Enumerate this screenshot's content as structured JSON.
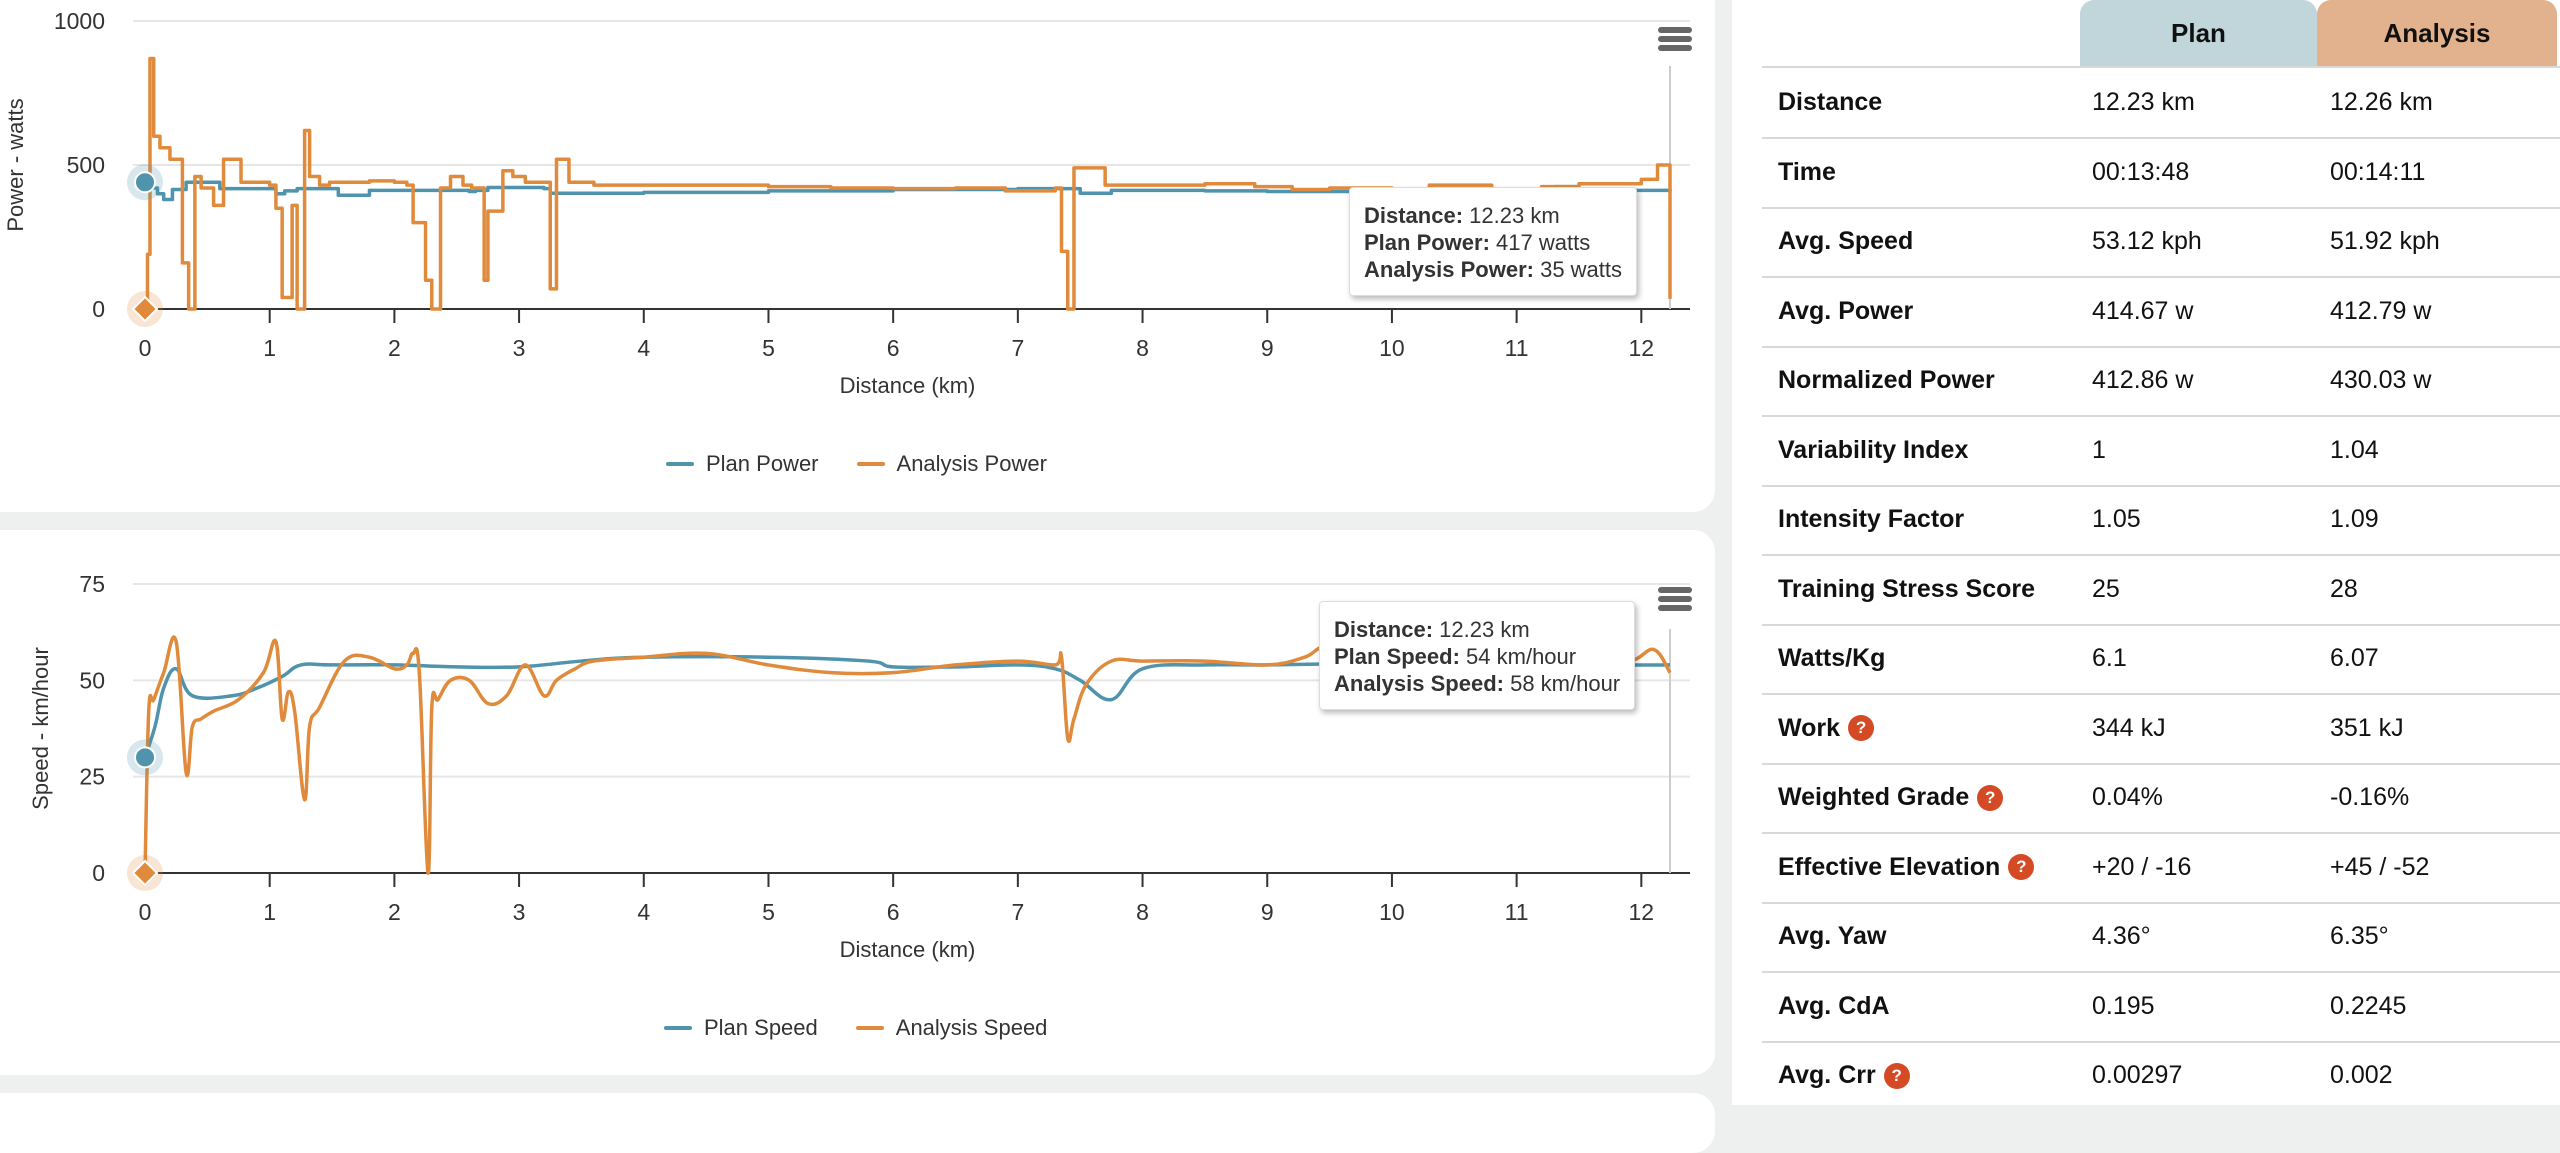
{
  "colors": {
    "plan": "#4f93ad",
    "analysis": "#e08a3c",
    "plan_header_bg": "#c1d6da",
    "analysis_header_bg": "#e2b18d",
    "help_icon": "#d34a25"
  },
  "chart_data": [
    {
      "id": "power",
      "type": "line",
      "step": true,
      "title": "",
      "xlabel": "Distance (km)",
      "ylabel": "Power - watts",
      "xlim": [
        0,
        12.23
      ],
      "ylim": [
        0,
        1000
      ],
      "x_ticks": [
        "0",
        "1",
        "2",
        "3",
        "4",
        "5",
        "6",
        "7",
        "8",
        "9",
        "10",
        "11",
        "12"
      ],
      "y_ticks": [
        "0",
        "500",
        "1000"
      ],
      "grid": true,
      "legend_position": "bottom-center",
      "series": [
        {
          "name": "Plan Power",
          "x": [
            0,
            0.05,
            0.1,
            0.15,
            0.22,
            0.33,
            0.6,
            1.05,
            1.12,
            1.22,
            1.55,
            1.8,
            2.3,
            2.6,
            2.65,
            2.75,
            3.2,
            3.25,
            4.0,
            5.0,
            6.0,
            7.0,
            7.5,
            7.75,
            8.5,
            9.0,
            9.5,
            10.0,
            10.5,
            11.0,
            11.3,
            11.5,
            12.23
          ],
          "values": [
            440,
            420,
            400,
            380,
            415,
            440,
            418,
            400,
            410,
            418,
            395,
            412,
            412,
            408,
            412,
            422,
            418,
            402,
            405,
            410,
            415,
            418,
            402,
            412,
            410,
            408,
            408,
            410,
            412,
            415,
            425,
            412,
            417
          ]
        },
        {
          "name": "Analysis Power",
          "x": [
            0,
            0.02,
            0.04,
            0.07,
            0.12,
            0.2,
            0.3,
            0.35,
            0.4,
            0.45,
            0.55,
            0.63,
            0.77,
            1.0,
            1.05,
            1.1,
            1.18,
            1.22,
            1.28,
            1.32,
            1.4,
            1.48,
            1.6,
            1.8,
            2.0,
            2.1,
            2.15,
            2.25,
            2.3,
            2.37,
            2.45,
            2.55,
            2.62,
            2.72,
            2.75,
            2.87,
            2.95,
            3.05,
            3.25,
            3.3,
            3.4,
            3.6,
            4.5,
            5.0,
            5.5,
            6.0,
            6.5,
            6.9,
            7.3,
            7.35,
            7.4,
            7.45,
            7.7,
            8.0,
            8.5,
            8.9,
            9.2,
            9.5,
            10.0,
            10.3,
            10.8,
            11.2,
            11.5,
            12.0,
            12.13,
            12.23
          ],
          "values": [
            0,
            190,
            870,
            600,
            560,
            520,
            160,
            0,
            460,
            420,
            360,
            520,
            440,
            430,
            350,
            40,
            360,
            0,
            620,
            460,
            430,
            440,
            440,
            445,
            440,
            430,
            300,
            100,
            0,
            420,
            460,
            430,
            420,
            100,
            340,
            480,
            460,
            440,
            70,
            520,
            440,
            430,
            430,
            425,
            420,
            418,
            420,
            410,
            420,
            200,
            0,
            490,
            430,
            430,
            435,
            425,
            415,
            420,
            410,
            430,
            415,
            425,
            435,
            450,
            500,
            35
          ],
          "markers": [
            {
              "x": 0,
              "value": 0
            }
          ]
        }
      ],
      "tooltip": {
        "distance_label": "Distance:",
        "distance_value": "12.23 km",
        "plan_label": "Plan Power:",
        "plan_value": "417 watts",
        "analysis_label": "Analysis Power:",
        "analysis_value": "35 watts"
      }
    },
    {
      "id": "speed",
      "type": "line",
      "step": false,
      "title": "",
      "xlabel": "Distance (km)",
      "ylabel": "Speed - km/hour",
      "xlim": [
        0,
        12.23
      ],
      "ylim": [
        0,
        75
      ],
      "x_ticks": [
        "0",
        "1",
        "2",
        "3",
        "4",
        "5",
        "6",
        "7",
        "8",
        "9",
        "10",
        "11",
        "12"
      ],
      "y_ticks": [
        "0",
        "25",
        "50",
        "75"
      ],
      "grid": true,
      "legend_position": "bottom-center",
      "series": [
        {
          "name": "Plan Speed",
          "x": [
            0,
            0.08,
            0.15,
            0.25,
            0.38,
            0.7,
            0.9,
            1.1,
            1.25,
            1.5,
            2.0,
            2.5,
            3.0,
            3.5,
            4.0,
            5.0,
            5.8,
            6.0,
            6.5,
            7.0,
            7.3,
            7.5,
            7.75,
            8.0,
            8.5,
            9.0,
            10.0,
            11.0,
            11.8,
            12.23
          ],
          "values": [
            30,
            38,
            48,
            53,
            46,
            46,
            48,
            51,
            54,
            54,
            54,
            53.5,
            53.5,
            55,
            56,
            56,
            55,
            53.5,
            53.5,
            54,
            53,
            50,
            45,
            53,
            54,
            54,
            54.5,
            54.5,
            54,
            54
          ]
        },
        {
          "name": "Analysis Speed",
          "x": [
            0,
            0.03,
            0.07,
            0.15,
            0.25,
            0.33,
            0.38,
            0.45,
            0.55,
            0.75,
            0.95,
            1.05,
            1.1,
            1.15,
            1.2,
            1.28,
            1.32,
            1.4,
            1.6,
            1.8,
            2.0,
            2.1,
            2.15,
            2.2,
            2.27,
            2.3,
            2.35,
            2.45,
            2.6,
            2.75,
            2.9,
            3.05,
            3.2,
            3.3,
            3.45,
            3.6,
            4.0,
            4.5,
            5.0,
            5.5,
            6.0,
            6.5,
            7.0,
            7.3,
            7.35,
            7.4,
            7.45,
            7.55,
            7.75,
            8.0,
            8.5,
            9.0,
            9.3,
            9.5,
            10.0,
            11.0,
            11.5,
            11.9,
            12.1,
            12.23
          ],
          "values": [
            0,
            42,
            45,
            52,
            60,
            26,
            38,
            40,
            42,
            45,
            52,
            60,
            40,
            47,
            42,
            19,
            38,
            43,
            55,
            56,
            53,
            54,
            57,
            52,
            0,
            43,
            45,
            50,
            50,
            44,
            46,
            54,
            46,
            50,
            53,
            55,
            56,
            57,
            54,
            52,
            52,
            54,
            55,
            54,
            56,
            35,
            40,
            49,
            55,
            55,
            55,
            54,
            56,
            59,
            58,
            57,
            56,
            55,
            58,
            52
          ]
        }
      ],
      "tooltip": {
        "distance_label": "Distance:",
        "distance_value": "12.23 km",
        "plan_label": "Plan Speed:",
        "plan_value": "54 km/hour",
        "analysis_label": "Analysis Speed:",
        "analysis_value": "58 km/hour"
      }
    }
  ],
  "stats": {
    "headers": {
      "plan": "Plan",
      "analysis": "Analysis"
    },
    "rows": [
      {
        "label": "Distance",
        "help": false,
        "plan": "12.23 km",
        "analysis": "12.26 km"
      },
      {
        "label": "Time",
        "help": false,
        "plan": "00:13:48",
        "analysis": "00:14:11"
      },
      {
        "label": "Avg. Speed",
        "help": false,
        "plan": "53.12 kph",
        "analysis": "51.92 kph"
      },
      {
        "label": "Avg. Power",
        "help": false,
        "plan": "414.67 w",
        "analysis": "412.79 w"
      },
      {
        "label": "Normalized Power",
        "help": false,
        "plan": "412.86 w",
        "analysis": "430.03 w"
      },
      {
        "label": "Variability Index",
        "help": false,
        "plan": "1",
        "analysis": "1.04"
      },
      {
        "label": "Intensity Factor",
        "help": false,
        "plan": "1.05",
        "analysis": "1.09"
      },
      {
        "label": "Training Stress Score",
        "help": false,
        "plan": "25",
        "analysis": "28"
      },
      {
        "label": "Watts/Kg",
        "help": false,
        "plan": "6.1",
        "analysis": "6.07"
      },
      {
        "label": "Work",
        "help": true,
        "plan": "344 kJ",
        "analysis": "351 kJ"
      },
      {
        "label": "Weighted Grade",
        "help": true,
        "plan": "0.04%",
        "analysis": "-0.16%"
      },
      {
        "label": "Effective Elevation",
        "help": true,
        "plan": "+20 / -16",
        "analysis": "+45 / -52"
      },
      {
        "label": "Avg. Yaw",
        "help": false,
        "plan": "4.36°",
        "analysis": "6.35°"
      },
      {
        "label": "Avg. CdA",
        "help": false,
        "plan": "0.195",
        "analysis": "0.2245"
      },
      {
        "label": "Avg. Crr",
        "help": true,
        "plan": "0.00297",
        "analysis": "0.002"
      }
    ],
    "help_icon_glyph": "?"
  },
  "icons": {
    "chart_menu": "hamburger-menu-icon",
    "help": "question-circle-icon"
  }
}
